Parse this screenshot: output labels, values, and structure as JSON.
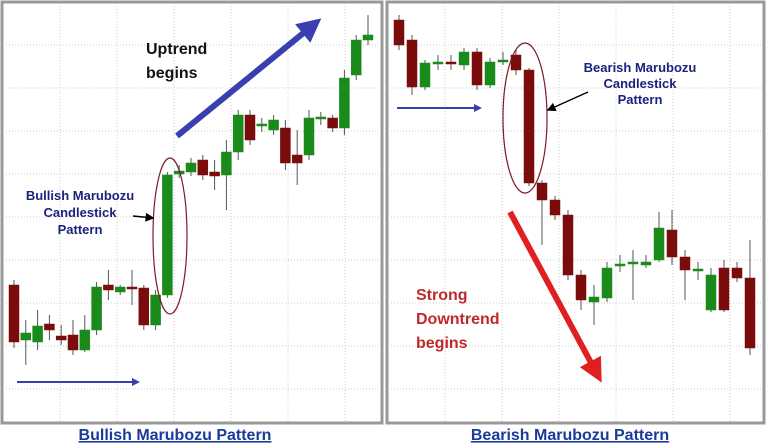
{
  "chart_data": [
    {
      "type": "candlestick",
      "title": "Bullish Marubozu Pattern",
      "annotations": [
        [
          "Uptrend",
          "begins"
        ],
        [
          "Bullish Marubozu",
          "Candlestick",
          "Pattern"
        ]
      ],
      "open": [
        137,
        82,
        80,
        98,
        86,
        87,
        72,
        92,
        137,
        130,
        135,
        134,
        97,
        127,
        248,
        250,
        262,
        250,
        247,
        270,
        307,
        296,
        292,
        294,
        267,
        267,
        303,
        304,
        294,
        347,
        382
      ],
      "high": [
        142,
        102,
        112,
        107,
        97,
        102,
        107,
        140,
        152,
        137,
        152,
        137,
        132,
        250,
        257,
        264,
        267,
        262,
        282,
        312,
        312,
        304,
        307,
        302,
        292,
        312,
        310,
        307,
        352,
        387,
        407
      ],
      "low": [
        74,
        57,
        72,
        82,
        77,
        67,
        70,
        87,
        122,
        127,
        117,
        92,
        92,
        124,
        244,
        246,
        242,
        232,
        212,
        262,
        277,
        290,
        287,
        252,
        237,
        262,
        297,
        290,
        287,
        342,
        377
      ],
      "close": [
        80,
        89,
        96,
        92,
        82,
        72,
        92,
        135,
        132,
        135,
        133,
        97,
        127,
        247,
        251,
        259,
        247,
        246,
        270,
        307,
        282,
        298,
        302,
        259,
        259,
        304,
        305,
        294,
        344,
        382,
        387
      ],
      "ylim": [
        0,
        419
      ],
      "grid": true,
      "up_color": "#1a8a1a",
      "down_color": "#7a0c0c"
    },
    {
      "type": "candlestick",
      "title": "Bearish Marubozu Pattern",
      "annotations": [
        [
          "Bearish Marubozu",
          "Candlestick",
          "Pattern"
        ],
        [
          "Strong",
          "Downtrend",
          "begins"
        ]
      ],
      "open": [
        402,
        382,
        335,
        358,
        360,
        357,
        370,
        337,
        360,
        367,
        352,
        239,
        222,
        207,
        147,
        120,
        124,
        156,
        158,
        157,
        162,
        192,
        165,
        151,
        112,
        154,
        154,
        144
      ],
      "high": [
        407,
        387,
        362,
        367,
        367,
        374,
        374,
        364,
        370,
        372,
        354,
        242,
        226,
        212,
        152,
        137,
        160,
        167,
        172,
        167,
        210,
        212,
        172,
        160,
        154,
        162,
        160,
        182
      ],
      "low": [
        372,
        327,
        332,
        352,
        352,
        352,
        332,
        334,
        357,
        347,
        236,
        177,
        202,
        142,
        112,
        97,
        120,
        150,
        122,
        154,
        160,
        157,
        122,
        142,
        110,
        110,
        140,
        67
      ],
      "close": [
        377,
        335,
        359,
        360,
        358,
        370,
        337,
        360,
        362,
        352,
        239,
        222,
        207,
        147,
        122,
        125,
        154,
        158,
        160,
        160,
        194,
        165,
        152,
        153,
        147,
        112,
        144,
        74
      ],
      "ylim": [
        0,
        419
      ],
      "grid": true,
      "up_color": "#1a8a1a",
      "down_color": "#7a0c0c"
    }
  ]
}
